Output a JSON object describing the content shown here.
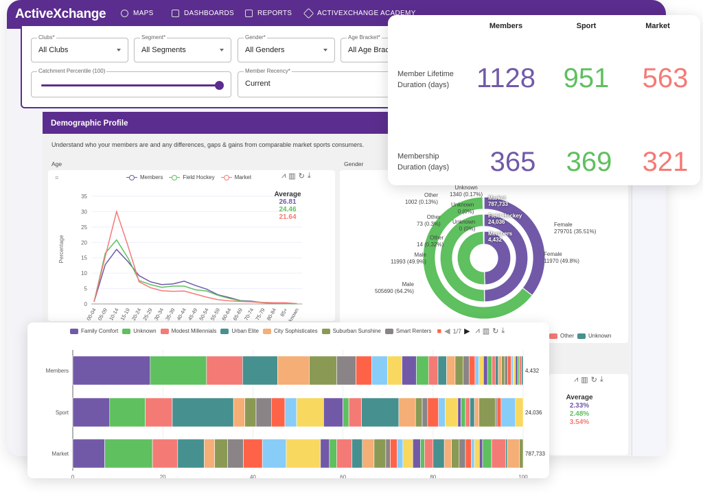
{
  "nav": {
    "logo": "ActiveXchange",
    "items": [
      {
        "label": "MAPS",
        "icon": "map-pin-icon"
      },
      {
        "label": "DASHBOARDS",
        "icon": "dashboard-icon"
      },
      {
        "label": "REPORTS",
        "icon": "document-icon"
      },
      {
        "label": "ACTIVEXCHANGE ACADEMY",
        "icon": "graduation-cap-icon"
      }
    ]
  },
  "filters": {
    "clubs": {
      "label": "Clubs*",
      "value": "All Clubs"
    },
    "segment": {
      "label": "Segment*",
      "value": "All Segments"
    },
    "gender": {
      "label": "Gender*",
      "value": "All Genders"
    },
    "age": {
      "label": "Age Bracket*",
      "value": "All Age Brac"
    },
    "catchment": {
      "label": "Catchment Percentile (100)",
      "value": 100
    },
    "recency": {
      "label": "Member Recency*",
      "value": "Current"
    }
  },
  "demographic": {
    "title": "Demographic Profile",
    "description": "Understand who your members are and any differences, gaps & gains from comparable market sports consumers.",
    "age_label": "Age",
    "gender_label": "Gender"
  },
  "colors": {
    "members": "#7159a8",
    "sport": "#5ec05e",
    "market": "#f47a76",
    "brand": "#5b2d8e"
  },
  "stats": {
    "headers": [
      "Members",
      "Sport",
      "Market"
    ],
    "rows": [
      {
        "label": "Member Lifetime Duration (days)",
        "values": [
          "1128",
          "951",
          "563"
        ]
      },
      {
        "label": "Membership Duration (days)",
        "values": [
          "365",
          "369",
          "321"
        ]
      }
    ]
  },
  "lower_panel": {
    "average_title": "Average",
    "averages": [
      "2.33%",
      "2.48%",
      "3.54%"
    ]
  },
  "chart_data": [
    {
      "type": "line",
      "ylabel": "Percentage",
      "ylim": [
        0,
        35
      ],
      "yticks": [
        "0",
        "5",
        "10",
        "15",
        "20",
        "25",
        "30",
        "35"
      ],
      "grid": true,
      "legend": "top",
      "categories": [
        "00-04",
        "05-09",
        "10-14",
        "15-19",
        "20-24",
        "25-29",
        "30-34",
        "35-39",
        "40-44",
        "45-49",
        "50-54",
        "55-59",
        "60-64",
        "65-69",
        "70-74",
        "75-79",
        "80-84",
        "85+",
        "Unknown"
      ],
      "series": [
        {
          "name": "Members",
          "color": "#7159a8",
          "values": [
            0.7,
            12.8,
            17.7,
            13.8,
            9.2,
            7.2,
            6.3,
            6.5,
            7.4,
            6.0,
            4.8,
            3.0,
            2.1,
            1.1,
            0.9,
            0.4,
            0.2,
            0.2,
            0.1
          ]
        },
        {
          "name": "Field Hockey",
          "color": "#5ec05e",
          "values": [
            0.7,
            16.5,
            20.8,
            15.0,
            7.6,
            6.3,
            5.4,
            5.8,
            5.8,
            4.6,
            4.2,
            2.8,
            1.8,
            1.0,
            0.7,
            0.4,
            0.2,
            0.1,
            0.1
          ]
        },
        {
          "name": "Market",
          "color": "#f47a76",
          "values": [
            0.7,
            15.5,
            30.0,
            19.0,
            7.2,
            5.3,
            4.3,
            4.1,
            4.2,
            3.2,
            2.2,
            1.4,
            1.0,
            0.8,
            0.7,
            0.5,
            0.4,
            0.4,
            0.1
          ]
        }
      ],
      "average_title": "Average",
      "averages": [
        "26.81",
        "24.46",
        "21.64"
      ]
    },
    {
      "type": "pie",
      "subtype": "nested-donut",
      "legend": [
        "Other",
        "Unknown"
      ],
      "rings": [
        {
          "name": "Members",
          "total": "4,432",
          "slices": [
            {
              "name": "Female",
              "share": 49.5,
              "color": "#7159a8"
            },
            {
              "name": "Male",
              "share": 50.18,
              "color": "#5ec05e"
            },
            {
              "name": "Other",
              "label": "14 (0.32%)",
              "share": 0.32,
              "color": "#f47a76"
            },
            {
              "name": "Unknown",
              "label": "0 (0%)",
              "share": 0,
              "color": "#46908f"
            }
          ]
        },
        {
          "name": "Field Hockey",
          "total": "24,036",
          "slices": [
            {
              "name": "Female",
              "label": "11970 (49.8%)",
              "share": 49.8,
              "color": "#7159a8"
            },
            {
              "name": "Male",
              "label": "11993 (49.9%)",
              "share": 49.9,
              "color": "#5ec05e"
            },
            {
              "name": "Other",
              "label": "73 (0.3%)",
              "share": 0.3,
              "color": "#f47a76"
            },
            {
              "name": "Unknown",
              "label": "0 (0%)",
              "share": 0,
              "color": "#46908f"
            }
          ]
        },
        {
          "name": "Market",
          "total": "787,733",
          "slices": [
            {
              "name": "Female",
              "label": "279701 (35.51%)",
              "share": 35.51,
              "color": "#7159a8"
            },
            {
              "name": "Male",
              "label": "505690 (64.2%)",
              "share": 64.2,
              "color": "#5ec05e"
            },
            {
              "name": "Other",
              "label": "1002 (0.13%)",
              "share": 0.13,
              "color": "#f47a76"
            },
            {
              "name": "Unknown",
              "label": "1340 (0.17%)",
              "share": 0.17,
              "color": "#46908f"
            }
          ]
        }
      ]
    },
    {
      "type": "bar",
      "orientation": "horizontal",
      "stacked": true,
      "xlim": [
        0,
        100
      ],
      "xticks": [
        "0",
        "20",
        "40",
        "60",
        "80",
        "100"
      ],
      "legend": [
        "Family Comfort",
        "Unknown",
        "Modest Millennials",
        "Urban Elite",
        "City Sophisticates",
        "Suburban Sunshine",
        "Smart Renters"
      ],
      "legend_page": "1/7",
      "palette": [
        "#7159a8",
        "#5ec05e",
        "#f47a76",
        "#46908f",
        "#f4ae76",
        "#8a9a55",
        "#8a8486",
        "#ff6347",
        "#88ccf8",
        "#f8d85e"
      ],
      "categories": [
        "Members",
        "Sport",
        "Market"
      ],
      "totals": [
        "4,432",
        "24,036",
        "787,733"
      ],
      "series_values": [
        [
          17.2,
          12.5,
          8.0,
          7.8,
          7.0,
          6.1,
          4.3,
          3.5,
          3.5,
          3.2,
          3.2,
          2.7,
          2.1,
          1.9,
          1.9,
          1.8,
          1.3,
          1.3,
          0.9,
          1.0,
          0.9,
          1.0,
          0.7,
          0.7,
          0.7,
          0.7,
          0.7,
          0.7,
          0.5,
          0.5,
          0.5,
          0.4,
          0.4,
          0.4
        ],
        [
          8.2,
          7.9,
          6.0,
          13.6,
          2.5,
          2.5,
          3.4,
          3.0,
          2.6,
          6.0,
          4.3,
          1.3,
          2.8,
          8.3,
          3.7,
          1.5,
          1.2,
          2.4,
          1.5,
          2.8,
          0.7,
          1.0,
          1.0,
          1.0,
          1.0,
          3.6,
          0.4,
          0.9,
          3.2,
          1.7
        ],
        [
          7.1,
          10.6,
          5.6,
          5.9,
          2.3,
          2.9,
          3.5,
          4.2,
          5.3,
          7.6,
          2.0,
          1.6,
          3.4,
          2.3,
          2.6,
          2.6,
          1.0,
          1.5,
          1.3,
          2.2,
          1.7,
          0.9,
          1.9,
          2.5,
          1.6,
          1.7,
          1.4,
          1.3,
          0.7,
          1.1,
          0.7,
          2.0,
          3.1,
          0.4,
          2.7,
          0.8
        ]
      ]
    }
  ]
}
